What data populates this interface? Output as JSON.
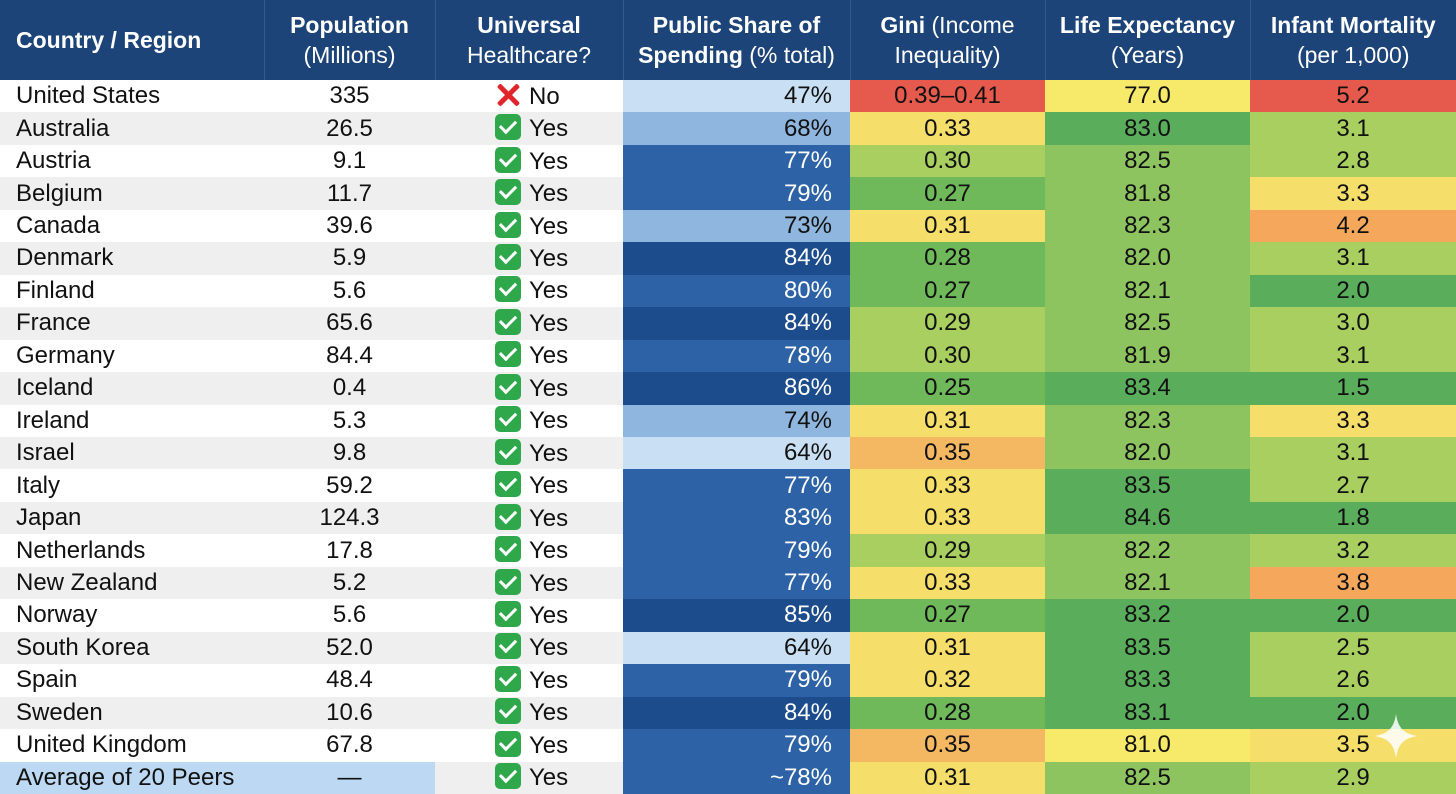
{
  "chart_data": {
    "type": "table",
    "columns": [
      {
        "bold": "Country / Region",
        "rest": ""
      },
      {
        "bold": "Population",
        "rest": "(Millions)"
      },
      {
        "bold": "Universal",
        "rest": "Healthcare?"
      },
      {
        "bold": "Public Share of",
        "bold2": "Spending",
        "rest": " (% total)"
      },
      {
        "bold": "Gini",
        "rest": " (Income",
        "rest2": "Inequality)"
      },
      {
        "bold": "Life Expectancy",
        "rest": "(Years)"
      },
      {
        "bold": "Infant Mortality",
        "rest": "(per 1,000)"
      }
    ],
    "rows": [
      {
        "country": "United States",
        "population": "335",
        "uhc": "No",
        "uhc_icon": "cross-mark-icon",
        "public_share": "47%",
        "gini": "0.39–0.41",
        "life_expectancy": "77.0",
        "infant_mortality": "5.2"
      },
      {
        "country": "Australia",
        "population": "26.5",
        "uhc": "Yes",
        "uhc_icon": "check-mark-icon",
        "public_share": "68%",
        "gini": "0.33",
        "life_expectancy": "83.0",
        "infant_mortality": "3.1"
      },
      {
        "country": "Austria",
        "population": "9.1",
        "uhc": "Yes",
        "uhc_icon": "check-mark-icon",
        "public_share": "77%",
        "gini": "0.30",
        "life_expectancy": "82.5",
        "infant_mortality": "2.8"
      },
      {
        "country": "Belgium",
        "population": "11.7",
        "uhc": "Yes",
        "uhc_icon": "check-mark-icon",
        "public_share": "79%",
        "gini": "0.27",
        "life_expectancy": "81.8",
        "infant_mortality": "3.3"
      },
      {
        "country": "Canada",
        "population": "39.6",
        "uhc": "Yes",
        "uhc_icon": "check-mark-icon",
        "public_share": "73%",
        "gini": "0.31",
        "life_expectancy": "82.3",
        "infant_mortality": "4.2"
      },
      {
        "country": "Denmark",
        "population": "5.9",
        "uhc": "Yes",
        "uhc_icon": "check-mark-icon",
        "public_share": "84%",
        "gini": "0.28",
        "life_expectancy": "82.0",
        "infant_mortality": "3.1"
      },
      {
        "country": "Finland",
        "population": "5.6",
        "uhc": "Yes",
        "uhc_icon": "check-mark-icon",
        "public_share": "80%",
        "gini": "0.27",
        "life_expectancy": "82.1",
        "infant_mortality": "2.0"
      },
      {
        "country": "France",
        "population": "65.6",
        "uhc": "Yes",
        "uhc_icon": "check-mark-icon",
        "public_share": "84%",
        "gini": "0.29",
        "life_expectancy": "82.5",
        "infant_mortality": "3.0"
      },
      {
        "country": "Germany",
        "population": "84.4",
        "uhc": "Yes",
        "uhc_icon": "check-mark-icon",
        "public_share": "78%",
        "gini": "0.30",
        "life_expectancy": "81.9",
        "infant_mortality": "3.1"
      },
      {
        "country": "Iceland",
        "population": "0.4",
        "uhc": "Yes",
        "uhc_icon": "check-mark-icon",
        "public_share": "86%",
        "gini": "0.25",
        "life_expectancy": "83.4",
        "infant_mortality": "1.5"
      },
      {
        "country": "Ireland",
        "population": "5.3",
        "uhc": "Yes",
        "uhc_icon": "check-mark-icon",
        "public_share": "74%",
        "gini": "0.31",
        "life_expectancy": "82.3",
        "infant_mortality": "3.3"
      },
      {
        "country": "Israel",
        "population": "9.8",
        "uhc": "Yes",
        "uhc_icon": "check-mark-icon",
        "public_share": "64%",
        "gini": "0.35",
        "life_expectancy": "82.0",
        "infant_mortality": "3.1"
      },
      {
        "country": "Italy",
        "population": "59.2",
        "uhc": "Yes",
        "uhc_icon": "check-mark-icon",
        "public_share": "77%",
        "gini": "0.33",
        "life_expectancy": "83.5",
        "infant_mortality": "2.7"
      },
      {
        "country": "Japan",
        "population": "124.3",
        "uhc": "Yes",
        "uhc_icon": "check-mark-icon",
        "public_share": "83%",
        "gini": "0.33",
        "life_expectancy": "84.6",
        "infant_mortality": "1.8"
      },
      {
        "country": "Netherlands",
        "population": "17.8",
        "uhc": "Yes",
        "uhc_icon": "check-mark-icon",
        "public_share": "79%",
        "gini": "0.29",
        "life_expectancy": "82.2",
        "infant_mortality": "3.2"
      },
      {
        "country": "New Zealand",
        "population": "5.2",
        "uhc": "Yes",
        "uhc_icon": "check-mark-icon",
        "public_share": "77%",
        "gini": "0.33",
        "life_expectancy": "82.1",
        "infant_mortality": "3.8"
      },
      {
        "country": "Norway",
        "population": "5.6",
        "uhc": "Yes",
        "uhc_icon": "check-mark-icon",
        "public_share": "85%",
        "gini": "0.27",
        "life_expectancy": "83.2",
        "infant_mortality": "2.0"
      },
      {
        "country": "South Korea",
        "population": "52.0",
        "uhc": "Yes",
        "uhc_icon": "check-mark-icon",
        "public_share": "64%",
        "gini": "0.31",
        "life_expectancy": "83.5",
        "infant_mortality": "2.5"
      },
      {
        "country": "Spain",
        "population": "48.4",
        "uhc": "Yes",
        "uhc_icon": "check-mark-icon",
        "public_share": "79%",
        "gini": "0.32",
        "life_expectancy": "83.3",
        "infant_mortality": "2.6"
      },
      {
        "country": "Sweden",
        "population": "10.6",
        "uhc": "Yes",
        "uhc_icon": "check-mark-icon",
        "public_share": "84%",
        "gini": "0.28",
        "life_expectancy": "83.1",
        "infant_mortality": "2.0"
      },
      {
        "country": "United Kingdom",
        "population": "67.8",
        "uhc": "Yes",
        "uhc_icon": "check-mark-icon",
        "public_share": "79%",
        "gini": "0.35",
        "life_expectancy": "81.0",
        "infant_mortality": "3.5"
      },
      {
        "country": "Average of 20 Peers",
        "population": "—",
        "uhc": "Yes",
        "uhc_icon": "check-mark-icon",
        "public_share": "~78%",
        "gini": "0.31",
        "life_expectancy": "82.5",
        "infant_mortality": "2.9",
        "is_average": true
      }
    ]
  },
  "colors": {
    "header_bg": "#1d4478",
    "header_text": "#ffffff",
    "gini_scale": [
      "#6fb95a",
      "#a8cf5f",
      "#f5de6a",
      "#f5b862",
      "#e55a4d"
    ],
    "life_expectancy_scale": [
      "#f7e96a",
      "#c6d865",
      "#8ec460",
      "#59ad5b"
    ],
    "infant_mortality_scale": [
      "#59ad5b",
      "#a8cf5f",
      "#f5de6a",
      "#f5a85c",
      "#e55a4d"
    ],
    "public_share_scale": [
      "#c9dff3",
      "#8fb6de",
      "#4f86c1",
      "#2d63a6",
      "#1c4c8c"
    ],
    "average_row_bg": "#bcd8f2"
  },
  "watermark_icon": "sparkle-icon"
}
